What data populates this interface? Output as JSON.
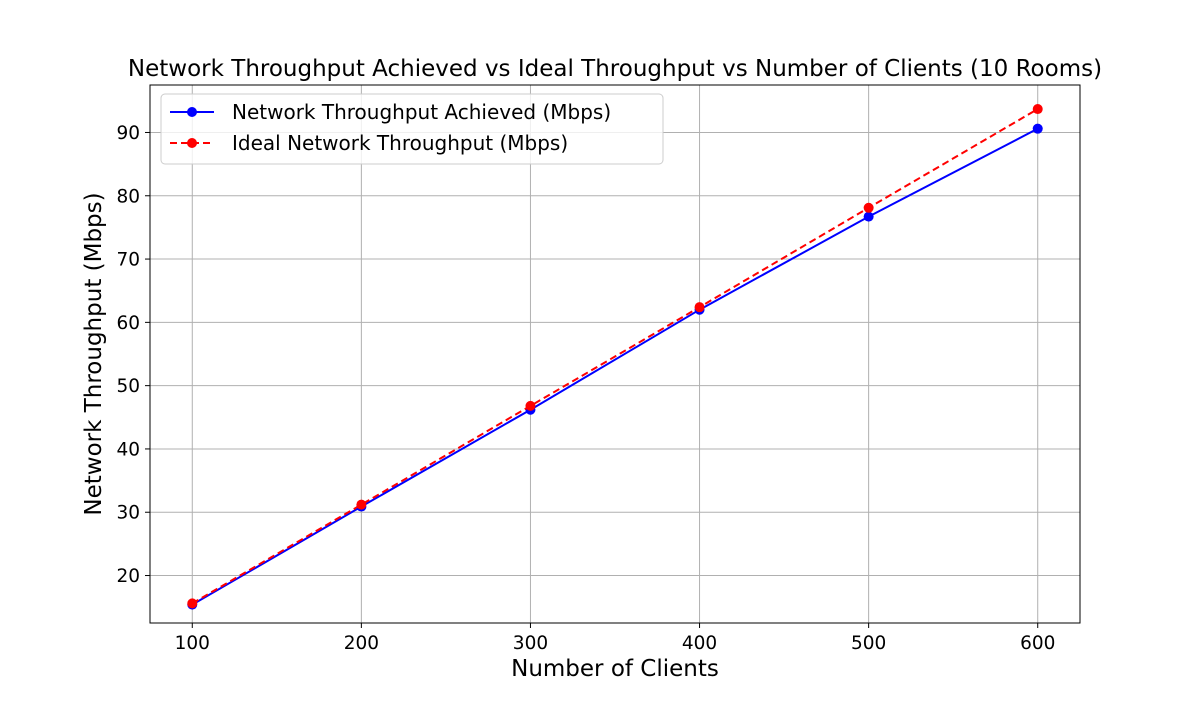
{
  "chart_data": {
    "type": "line",
    "title": "Network Throughput Achieved vs Ideal Throughput vs Number of Clients (10 Rooms)",
    "xlabel": "Number of Clients",
    "ylabel": "Network Throughput (Mbps)",
    "x": [
      100,
      200,
      300,
      400,
      500,
      600
    ],
    "xlim": [
      75,
      625
    ],
    "ylim": [
      12.5,
      97.5
    ],
    "x_ticks": [
      100,
      200,
      300,
      400,
      500,
      600
    ],
    "y_ticks": [
      20,
      30,
      40,
      50,
      60,
      70,
      80,
      90
    ],
    "grid": true,
    "legend_position": "upper-left",
    "series": [
      {
        "name": "Network Throughput Achieved (Mbps)",
        "values": [
          15.4,
          30.9,
          46.2,
          62.0,
          76.7,
          90.6
        ],
        "color": "#0000ff",
        "line_style": "solid",
        "marker": "circle"
      },
      {
        "name": "Ideal Network Throughput (Mbps)",
        "values": [
          15.6,
          31.2,
          46.8,
          62.4,
          78.1,
          93.7
        ],
        "color": "#ff0000",
        "line_style": "dashed",
        "marker": "circle"
      }
    ]
  }
}
